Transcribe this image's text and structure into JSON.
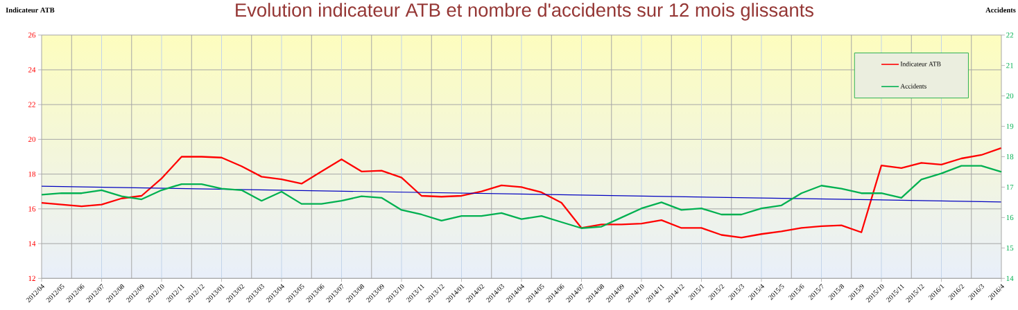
{
  "chart_data": {
    "type": "line",
    "title": "Evolution indicateur ATB et nombre d'accidents sur 12 mois glissants",
    "ylabel": "Indicateur ATB",
    "y2label": "Accidents",
    "x": [
      "2012-04",
      "2012-05",
      "2012-06",
      "2012-07",
      "2012-08",
      "2012-09",
      "2012-10",
      "2012-11",
      "2012-12",
      "2013-01",
      "2013-02",
      "2013-03",
      "2013-04",
      "2013-05",
      "2013-06",
      "2013-07",
      "2013-08",
      "2013-09",
      "2013-10",
      "2013-11",
      "2013-12",
      "2014-01",
      "2014-02",
      "2014-03",
      "2014-04",
      "2014-05",
      "2014-06",
      "2014-07",
      "2014-08",
      "2014-09",
      "2014-10",
      "2014-11",
      "2014-12",
      "2015-01",
      "2015-02",
      "2015-03",
      "2015-04",
      "2015-05",
      "2015-06",
      "2015-07",
      "2015-08",
      "2015-09",
      "2015-10",
      "2015-11",
      "2015-12",
      "2016-01",
      "2016-02",
      "2016-03",
      "2016-04"
    ],
    "xlim": [
      "2012-04",
      "2016-04"
    ],
    "xticks": [
      {
        "value": "2012-04",
        "label": "2012/04"
      },
      {
        "value": "2012-05",
        "label": "2012/05"
      },
      {
        "value": "2012-06",
        "label": "2012/06"
      },
      {
        "value": "2012-07",
        "label": "2012/07"
      },
      {
        "value": "2012-08",
        "label": "2012/08"
      },
      {
        "value": "2012-09",
        "label": "2012/09"
      },
      {
        "value": "2012-10",
        "label": "2012/10"
      },
      {
        "value": "2012-11",
        "label": "2012/11"
      },
      {
        "value": "2012-12",
        "label": "2012/12"
      },
      {
        "value": "2013-01",
        "label": "2013/01"
      },
      {
        "value": "2013-02",
        "label": "2013/02"
      },
      {
        "value": "2013-03",
        "label": "2013/03"
      },
      {
        "value": "2013-04",
        "label": "2013/04"
      },
      {
        "value": "2013-05",
        "label": "2013/05"
      },
      {
        "value": "2013-06",
        "label": "2013/06"
      },
      {
        "value": "2013-07",
        "label": "2013/07"
      },
      {
        "value": "2013-08",
        "label": "2013/08"
      },
      {
        "value": "2013-09",
        "label": "2013/09"
      },
      {
        "value": "2013-10",
        "label": "2013/10"
      },
      {
        "value": "2013-11",
        "label": "2013/11"
      },
      {
        "value": "2013-12",
        "label": "2013/12"
      },
      {
        "value": "2014-01",
        "label": "2014/01"
      },
      {
        "value": "2014-02",
        "label": "2014/02"
      },
      {
        "value": "2014-03",
        "label": "2014/03"
      },
      {
        "value": "2014-04",
        "label": "2014/04"
      },
      {
        "value": "2014-05",
        "label": "2014/05"
      },
      {
        "value": "2014-06",
        "label": "2014/06"
      },
      {
        "value": "2014-07",
        "label": "2014/07"
      },
      {
        "value": "2014-08",
        "label": "2014/08"
      },
      {
        "value": "2014-09",
        "label": "2014/09"
      },
      {
        "value": "2014-10",
        "label": "2014/10"
      },
      {
        "value": "2014-11",
        "label": "2014/11"
      },
      {
        "value": "2014-12",
        "label": "2014/12"
      },
      {
        "value": "2015-01",
        "label": "2015/1"
      },
      {
        "value": "2015-02",
        "label": "2015/2"
      },
      {
        "value": "2015-03",
        "label": "2015/3"
      },
      {
        "value": "2015-04",
        "label": "2015/4"
      },
      {
        "value": "2015-05",
        "label": "2015/5"
      },
      {
        "value": "2015-06",
        "label": "2015/6"
      },
      {
        "value": "2015-07",
        "label": "2015/7"
      },
      {
        "value": "2015-08",
        "label": "2015/8"
      },
      {
        "value": "2015-09",
        "label": "2015/9"
      },
      {
        "value": "2015-10",
        "label": "2015/10"
      },
      {
        "value": "2015-11",
        "label": "2015/11"
      },
      {
        "value": "2015-12",
        "label": "2015/12"
      },
      {
        "value": "2016-01",
        "label": "2016/1"
      },
      {
        "value": "2016-02",
        "label": "2016/2"
      },
      {
        "value": "2016-03",
        "label": "2016/3"
      },
      {
        "value": "2016-04",
        "label": "2016/4"
      }
    ],
    "ylim": [
      12,
      26
    ],
    "yticks": [
      12,
      14,
      16,
      18,
      20,
      22,
      24,
      26
    ],
    "y2lim": [
      14,
      22
    ],
    "y2ticks": [
      14,
      15,
      16,
      17,
      18,
      19,
      20,
      21,
      22
    ],
    "grid": true,
    "legend": "top right",
    "series": [
      {
        "name": "Indicateur ATB",
        "color": "#ff0000",
        "values": [
          16.35,
          16.25,
          16.15,
          16.25,
          16.6,
          16.75,
          17.75,
          19.0,
          19.0,
          18.95,
          18.45,
          17.85,
          17.7,
          17.45,
          18.15,
          18.85,
          18.15,
          18.2,
          17.8,
          16.75,
          16.7,
          16.75,
          17.0,
          17.35,
          17.25,
          16.95,
          16.35,
          14.9,
          15.1,
          15.1,
          15.15,
          15.35,
          14.9,
          14.9,
          14.5,
          14.35,
          14.55,
          14.7,
          14.9,
          15.0,
          15.05,
          14.65,
          18.5,
          18.35,
          18.65,
          18.55,
          18.9,
          19.1,
          19.5
        ]
      },
      {
        "name": "Accidents",
        "color": "#00b050",
        "axis": "y2",
        "values": [
          16.75,
          16.8,
          16.8,
          16.9,
          16.7,
          16.6,
          16.9,
          17.1,
          17.1,
          16.95,
          16.9,
          16.55,
          16.85,
          16.45,
          16.45,
          16.55,
          16.7,
          16.65,
          16.25,
          16.1,
          15.9,
          16.05,
          16.05,
          16.15,
          15.95,
          16.05,
          15.85,
          15.65,
          15.7,
          16.0,
          16.3,
          16.5,
          16.25,
          16.3,
          16.1,
          16.1,
          16.3,
          16.4,
          16.8,
          17.05,
          16.95,
          16.8,
          16.8,
          16.65,
          17.25,
          17.45,
          17.7,
          17.7,
          17.5
        ]
      },
      {
        "type": "line",
        "color": "#0000c0",
        "x": [
          "2012-04",
          "2016-04"
        ],
        "values": [
          17.3,
          16.4
        ]
      }
    ]
  }
}
